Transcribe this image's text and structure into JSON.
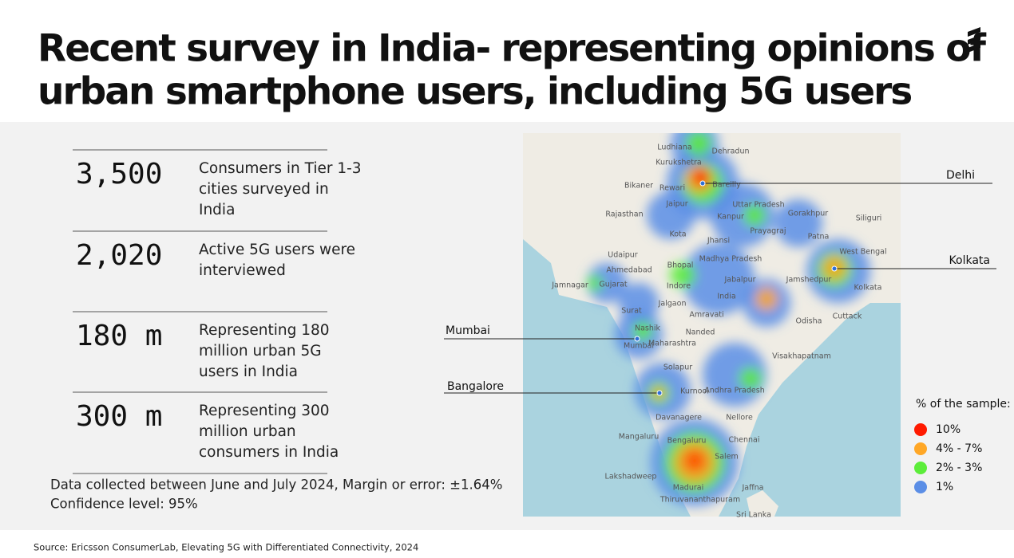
{
  "header": {
    "title_lines": [
      "Recent survey in India- representing opinions of",
      "urban smartphone users, including 5G users"
    ]
  },
  "stats": [
    {
      "number": "3,500",
      "description_lines": [
        "Consumers in Tier 1-3",
        "cities surveyed in",
        "India"
      ]
    },
    {
      "number": "2,020",
      "description_lines": [
        "Active 5G users were",
        "interviewed"
      ]
    },
    {
      "number": "180 m",
      "description_lines": [
        "Representing 180",
        "million urban 5G",
        "users in India"
      ]
    },
    {
      "number": "300 m",
      "description_lines": [
        "Representing 300",
        "million urban",
        "consumers in India"
      ]
    }
  ],
  "notes": [
    "Data collected between June and July 2024, Margin or error: ±1.64%",
    "Confidence level: 95%"
  ],
  "map": {
    "callouts": [
      "Delhi",
      "Kolkata",
      "Mumbai",
      "Bangalore"
    ],
    "places": [
      "Ludhiana",
      "Dehradun",
      "Kurukshetra",
      "Bikaner",
      "Rewari",
      "Bareilly",
      "Jaipur",
      "Uttar Pradesh",
      "Kanpur",
      "Gorakhpur",
      "Siliguri",
      "Rajasthan",
      "Prayagraj",
      "Patna",
      "Kota",
      "Jhansi",
      "Udaipur",
      "Madhya Pradesh",
      "Bhopal",
      "Ahmedabad",
      "Jabalpur",
      "Jamshedpur",
      "Kolkata",
      "West Bengal",
      "Jamnagar",
      "Gujarat",
      "Indore",
      "Jalgaon",
      "Amravati",
      "India",
      "Surat",
      "Odisha",
      "Cuttack",
      "Nashik",
      "Nanded",
      "Mumbai",
      "Maharashtra",
      "Visakhapatnam",
      "Solapur",
      "Kurnool",
      "Andhra Pradesh",
      "Davanagere",
      "Nellore",
      "Mangaluru",
      "Bengaluru",
      "Chennai",
      "Salem",
      "Lakshadweep",
      "Madurai",
      "Jaffna",
      "Thiruvananthapuram",
      "Sri Lanka"
    ]
  },
  "legend": {
    "title": "% of the sample:",
    "items": [
      {
        "label": "10%",
        "color": "#ff1a00"
      },
      {
        "label": "4% - 7%",
        "color": "#ffa726"
      },
      {
        "label": "2% - 3%",
        "color": "#5ced3a"
      },
      {
        "label": "1%",
        "color": "#5b8ee6"
      }
    ]
  },
  "source": "Source: Ericsson ConsumerLab, Elevating 5G with Differentiated Connectivity, 2024"
}
